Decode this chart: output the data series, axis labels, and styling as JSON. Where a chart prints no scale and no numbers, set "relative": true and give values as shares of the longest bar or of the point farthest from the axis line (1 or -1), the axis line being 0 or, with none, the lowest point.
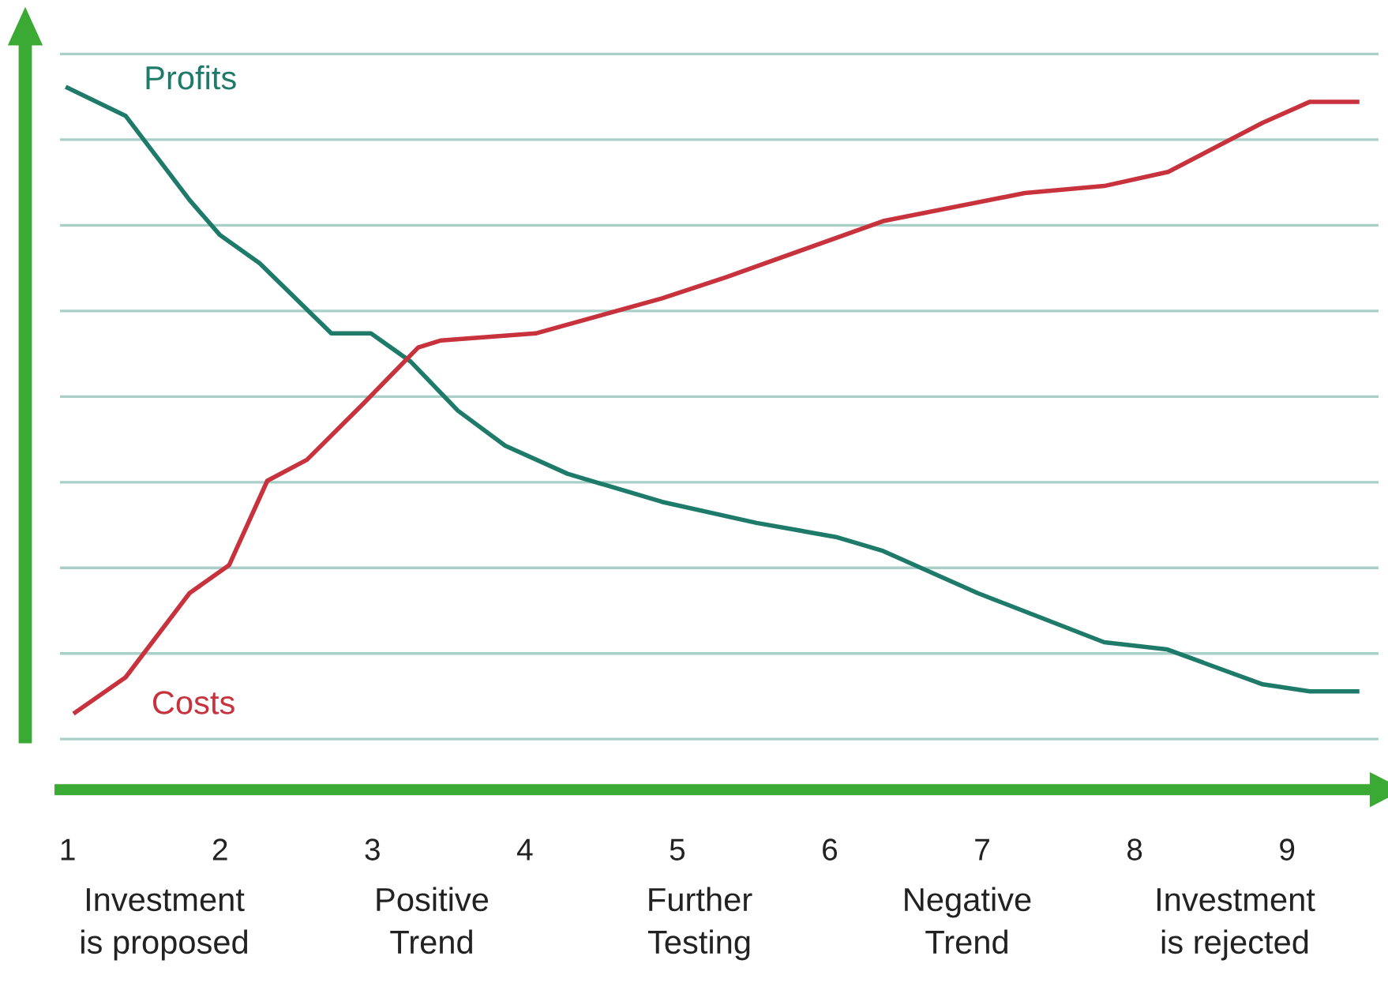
{
  "chart_data": {
    "type": "line",
    "relative": true,
    "xlim": [
      0.95,
      9.6
    ],
    "xticks": [
      1,
      2,
      3,
      4,
      5,
      6,
      7,
      8,
      9
    ],
    "grid": "y",
    "legend": false,
    "marker": "none",
    "line_style": "solid",
    "series": [
      {
        "name": "Profits",
        "color": "#1e7b6a",
        "x": [
          1.0,
          1.38,
          1.8,
          2.0,
          2.26,
          2.73,
          2.99,
          3.25,
          3.56,
          3.87,
          4.28,
          4.9,
          5.52,
          6.04,
          6.35,
          6.97,
          7.8,
          8.21,
          8.84,
          9.15,
          9.46
        ],
        "values": [
          1.0,
          0.96,
          0.84,
          0.79,
          0.75,
          0.65,
          0.65,
          0.61,
          0.54,
          0.49,
          0.45,
          0.41,
          0.38,
          0.36,
          0.34,
          0.28,
          0.21,
          0.2,
          0.15,
          0.14,
          0.14
        ]
      },
      {
        "name": "Costs",
        "color": "#c8323c",
        "x": [
          1.05,
          1.38,
          1.8,
          2.06,
          2.31,
          2.57,
          2.94,
          3.3,
          3.45,
          4.07,
          4.9,
          5.32,
          6.35,
          7.28,
          7.8,
          8.22,
          8.84,
          9.15,
          9.46
        ],
        "values": [
          0.11,
          0.16,
          0.28,
          0.32,
          0.44,
          0.47,
          0.55,
          0.63,
          0.64,
          0.65,
          0.7,
          0.73,
          0.81,
          0.85,
          0.86,
          0.88,
          0.95,
          0.98,
          0.98
        ]
      }
    ],
    "annotations": [
      "Investment\nis proposed",
      "Positive\nTrend",
      "Further\nTesting",
      "Negative\nTrend",
      "Investment\nis rejected"
    ]
  }
}
